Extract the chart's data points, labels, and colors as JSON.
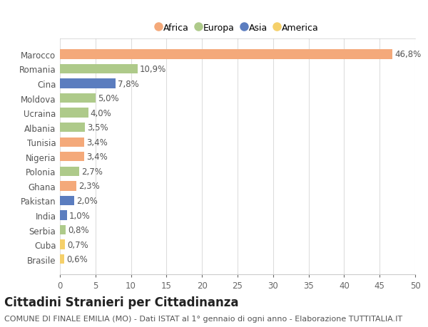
{
  "categories": [
    "Brasile",
    "Cuba",
    "Serbia",
    "India",
    "Pakistan",
    "Ghana",
    "Polonia",
    "Nigeria",
    "Tunisia",
    "Albania",
    "Ucraina",
    "Moldova",
    "Cina",
    "Romania",
    "Marocco"
  ],
  "values": [
    0.6,
    0.7,
    0.8,
    1.0,
    2.0,
    2.3,
    2.7,
    3.4,
    3.4,
    3.5,
    4.0,
    5.0,
    7.8,
    10.9,
    46.8
  ],
  "continents": [
    "America",
    "America",
    "Europa",
    "Asia",
    "Asia",
    "Africa",
    "Europa",
    "Africa",
    "Africa",
    "Europa",
    "Europa",
    "Europa",
    "Asia",
    "Europa",
    "Africa"
  ],
  "labels": [
    "0,6%",
    "0,7%",
    "0,8%",
    "1,0%",
    "2,0%",
    "2,3%",
    "2,7%",
    "3,4%",
    "3,4%",
    "3,5%",
    "4,0%",
    "5,0%",
    "7,8%",
    "10,9%",
    "46,8%"
  ],
  "continent_colors": {
    "Africa": "#F4A97A",
    "Europa": "#AECA8A",
    "Asia": "#5B7DBF",
    "America": "#F5D06A"
  },
  "legend_order": [
    "Africa",
    "Europa",
    "Asia",
    "America"
  ],
  "title": "Cittadini Stranieri per Cittadinanza",
  "subtitle": "COMUNE DI FINALE EMILIA (MO) - Dati ISTAT al 1° gennaio di ogni anno - Elaborazione TUTTITALIA.IT",
  "xlim": [
    0,
    50
  ],
  "xticks": [
    0,
    5,
    10,
    15,
    20,
    25,
    30,
    35,
    40,
    45,
    50
  ],
  "background_color": "#ffffff",
  "grid_color": "#dddddd",
  "bar_height": 0.65,
  "label_fontsize": 8.5,
  "tick_fontsize": 8.5,
  "title_fontsize": 12,
  "subtitle_fontsize": 8
}
